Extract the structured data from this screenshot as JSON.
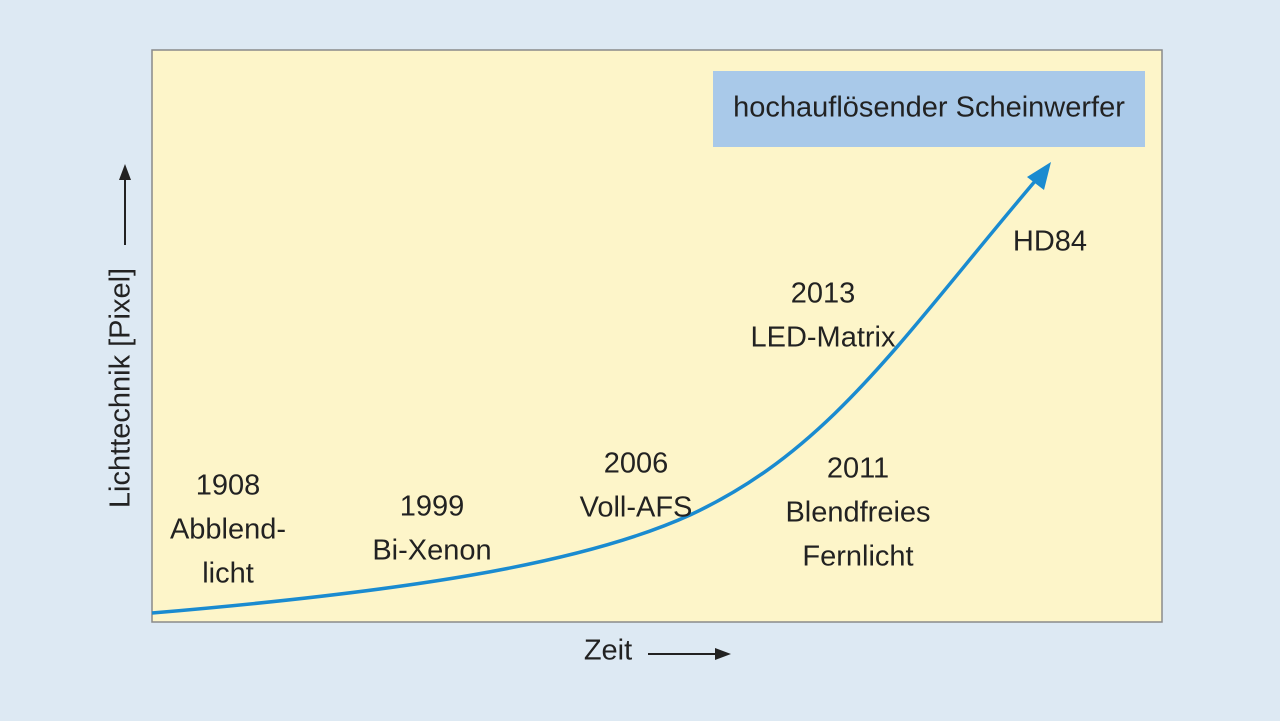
{
  "title_box": "hochauflösender Scheinwerfer",
  "y_axis_label": "Lichttechnik [Pixel]",
  "x_axis_label": "Zeit",
  "milestones": [
    {
      "lines": [
        "1908",
        "Abblend-",
        "licht"
      ]
    },
    {
      "lines": [
        "1999",
        "Bi-Xenon"
      ]
    },
    {
      "lines": [
        "2006",
        "Voll-AFS"
      ]
    },
    {
      "lines": [
        "2013",
        "LED-Matrix"
      ]
    },
    {
      "lines": [
        "2011",
        "Blendfreies",
        "Fernlicht"
      ]
    },
    {
      "lines": [
        "HD84"
      ]
    }
  ]
}
